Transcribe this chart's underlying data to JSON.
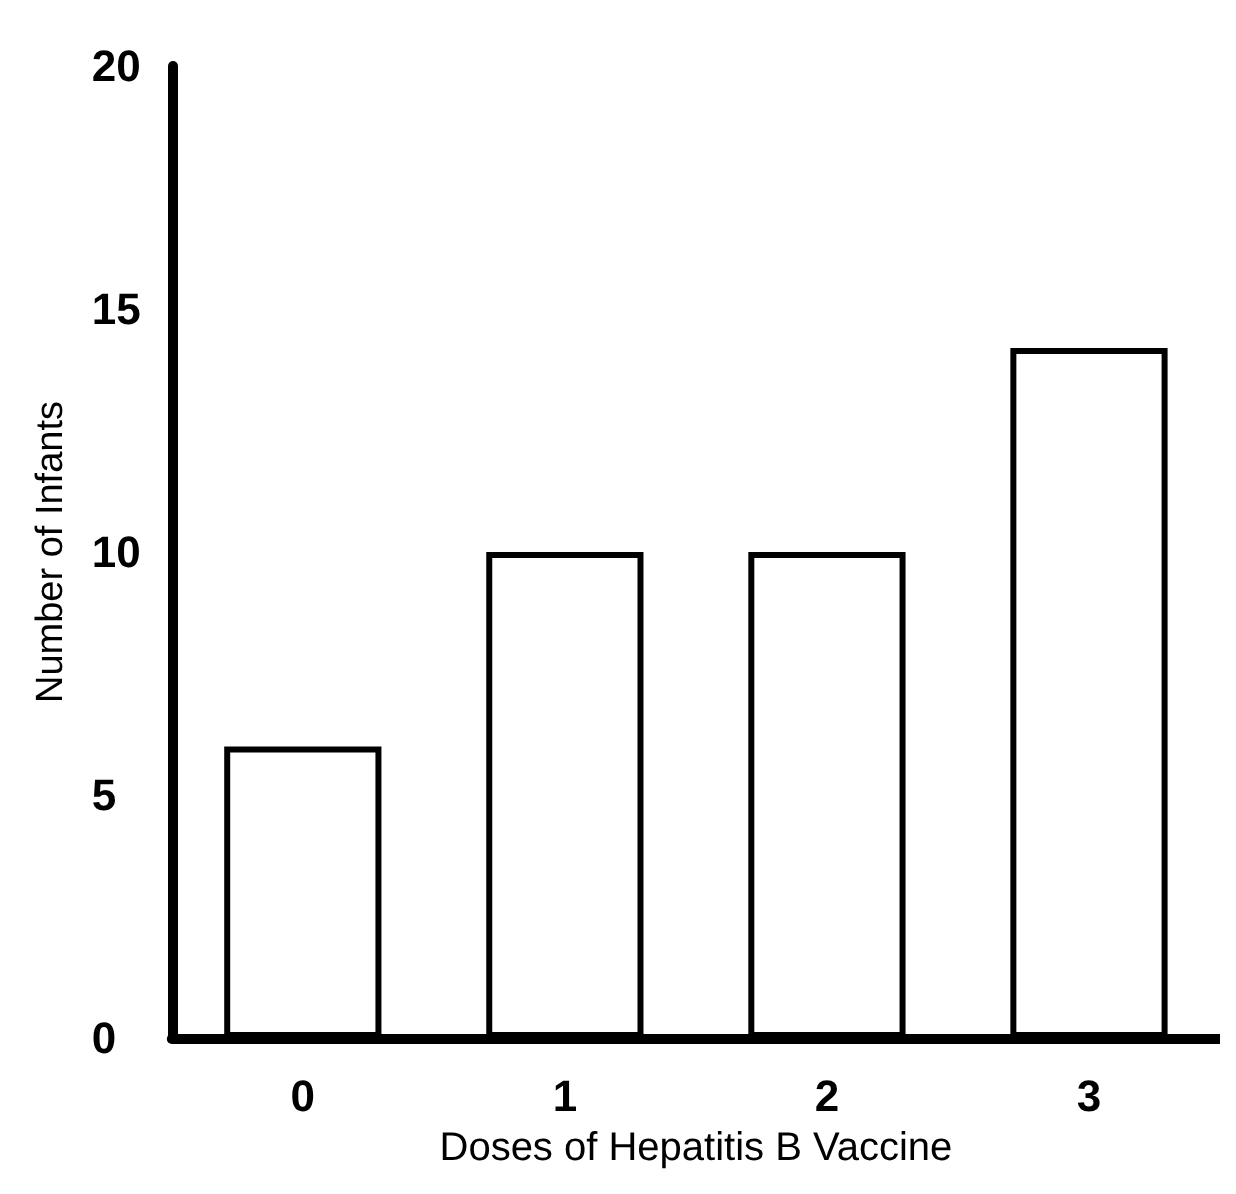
{
  "chart_data": {
    "type": "bar",
    "xlabel": "Doses of Hepatitis B Vaccine",
    "ylabel": "Number of Infants",
    "categories": [
      "0",
      "1",
      "2",
      "3"
    ],
    "values": [
      6,
      10,
      10,
      14.2
    ],
    "color": "#ffffff",
    "ylim": [
      0,
      20
    ],
    "yticks": [
      0,
      5,
      10,
      15,
      20
    ],
    "grid": false
  }
}
